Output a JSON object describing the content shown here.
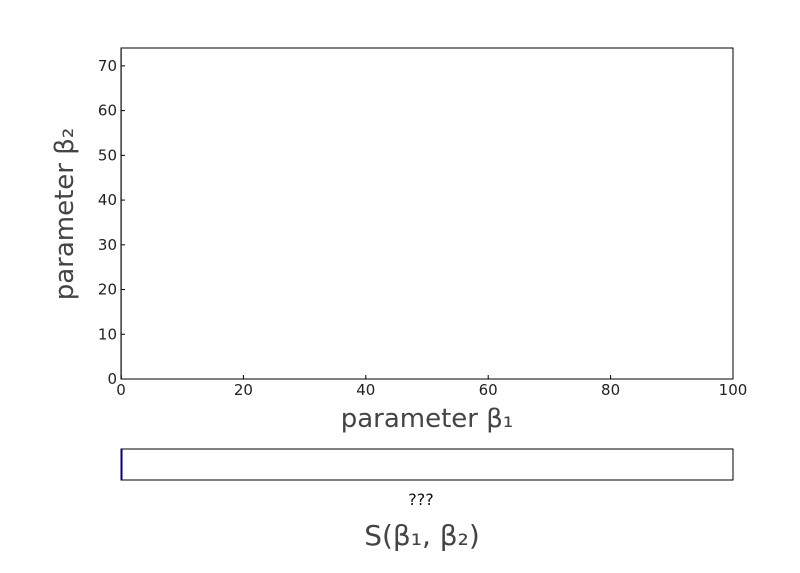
{
  "chart_data": {
    "type": "heatmap",
    "title": "",
    "xlabel": "parameter β₁",
    "ylabel": "parameter β₂",
    "xlim": [
      0,
      100
    ],
    "ylim": [
      0,
      74
    ],
    "x_ticks": [
      "0",
      "20",
      "40",
      "60",
      "80",
      "100"
    ],
    "y_ticks": [
      "0",
      "10",
      "20",
      "30",
      "40",
      "50",
      "60",
      "70"
    ],
    "x_tick_values": [
      0,
      20,
      40,
      60,
      80,
      100
    ],
    "y_tick_values": [
      0,
      10,
      20,
      30,
      40,
      50,
      60,
      70
    ],
    "values": [],
    "colorbar": {
      "orientation": "horizontal",
      "placement": "bottom",
      "tick_label": "???",
      "label": "S(β₁, β₂)"
    },
    "grid": false,
    "colors": {
      "frame": "#000000",
      "plot_background": "#ffffff",
      "colorbar_edge": "#000080",
      "label_text": "#444444",
      "tick_text": "#222222"
    }
  }
}
